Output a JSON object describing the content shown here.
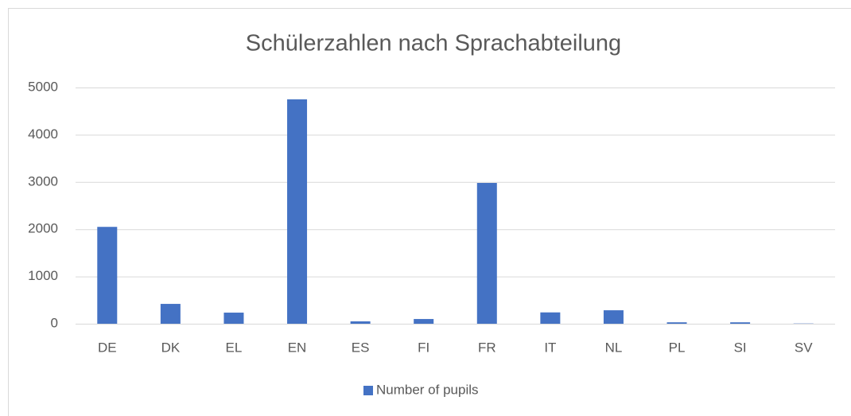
{
  "chart_data": {
    "type": "bar",
    "title": "Schülerzahlen nach Sprachabteilung",
    "categories": [
      "DE",
      "DK",
      "EL",
      "EN",
      "ES",
      "FI",
      "FR",
      "IT",
      "NL",
      "PL",
      "SI",
      "SV"
    ],
    "series": [
      {
        "name": "Number of pupils",
        "color": "#4472c4",
        "values": [
          2050,
          420,
          235,
          4750,
          50,
          100,
          2980,
          240,
          285,
          30,
          30,
          5
        ]
      }
    ],
    "ylim": [
      0,
      5000
    ],
    "yticks": [
      0,
      1000,
      2000,
      3000,
      4000,
      5000
    ],
    "grid": true,
    "legend": "bottom"
  }
}
